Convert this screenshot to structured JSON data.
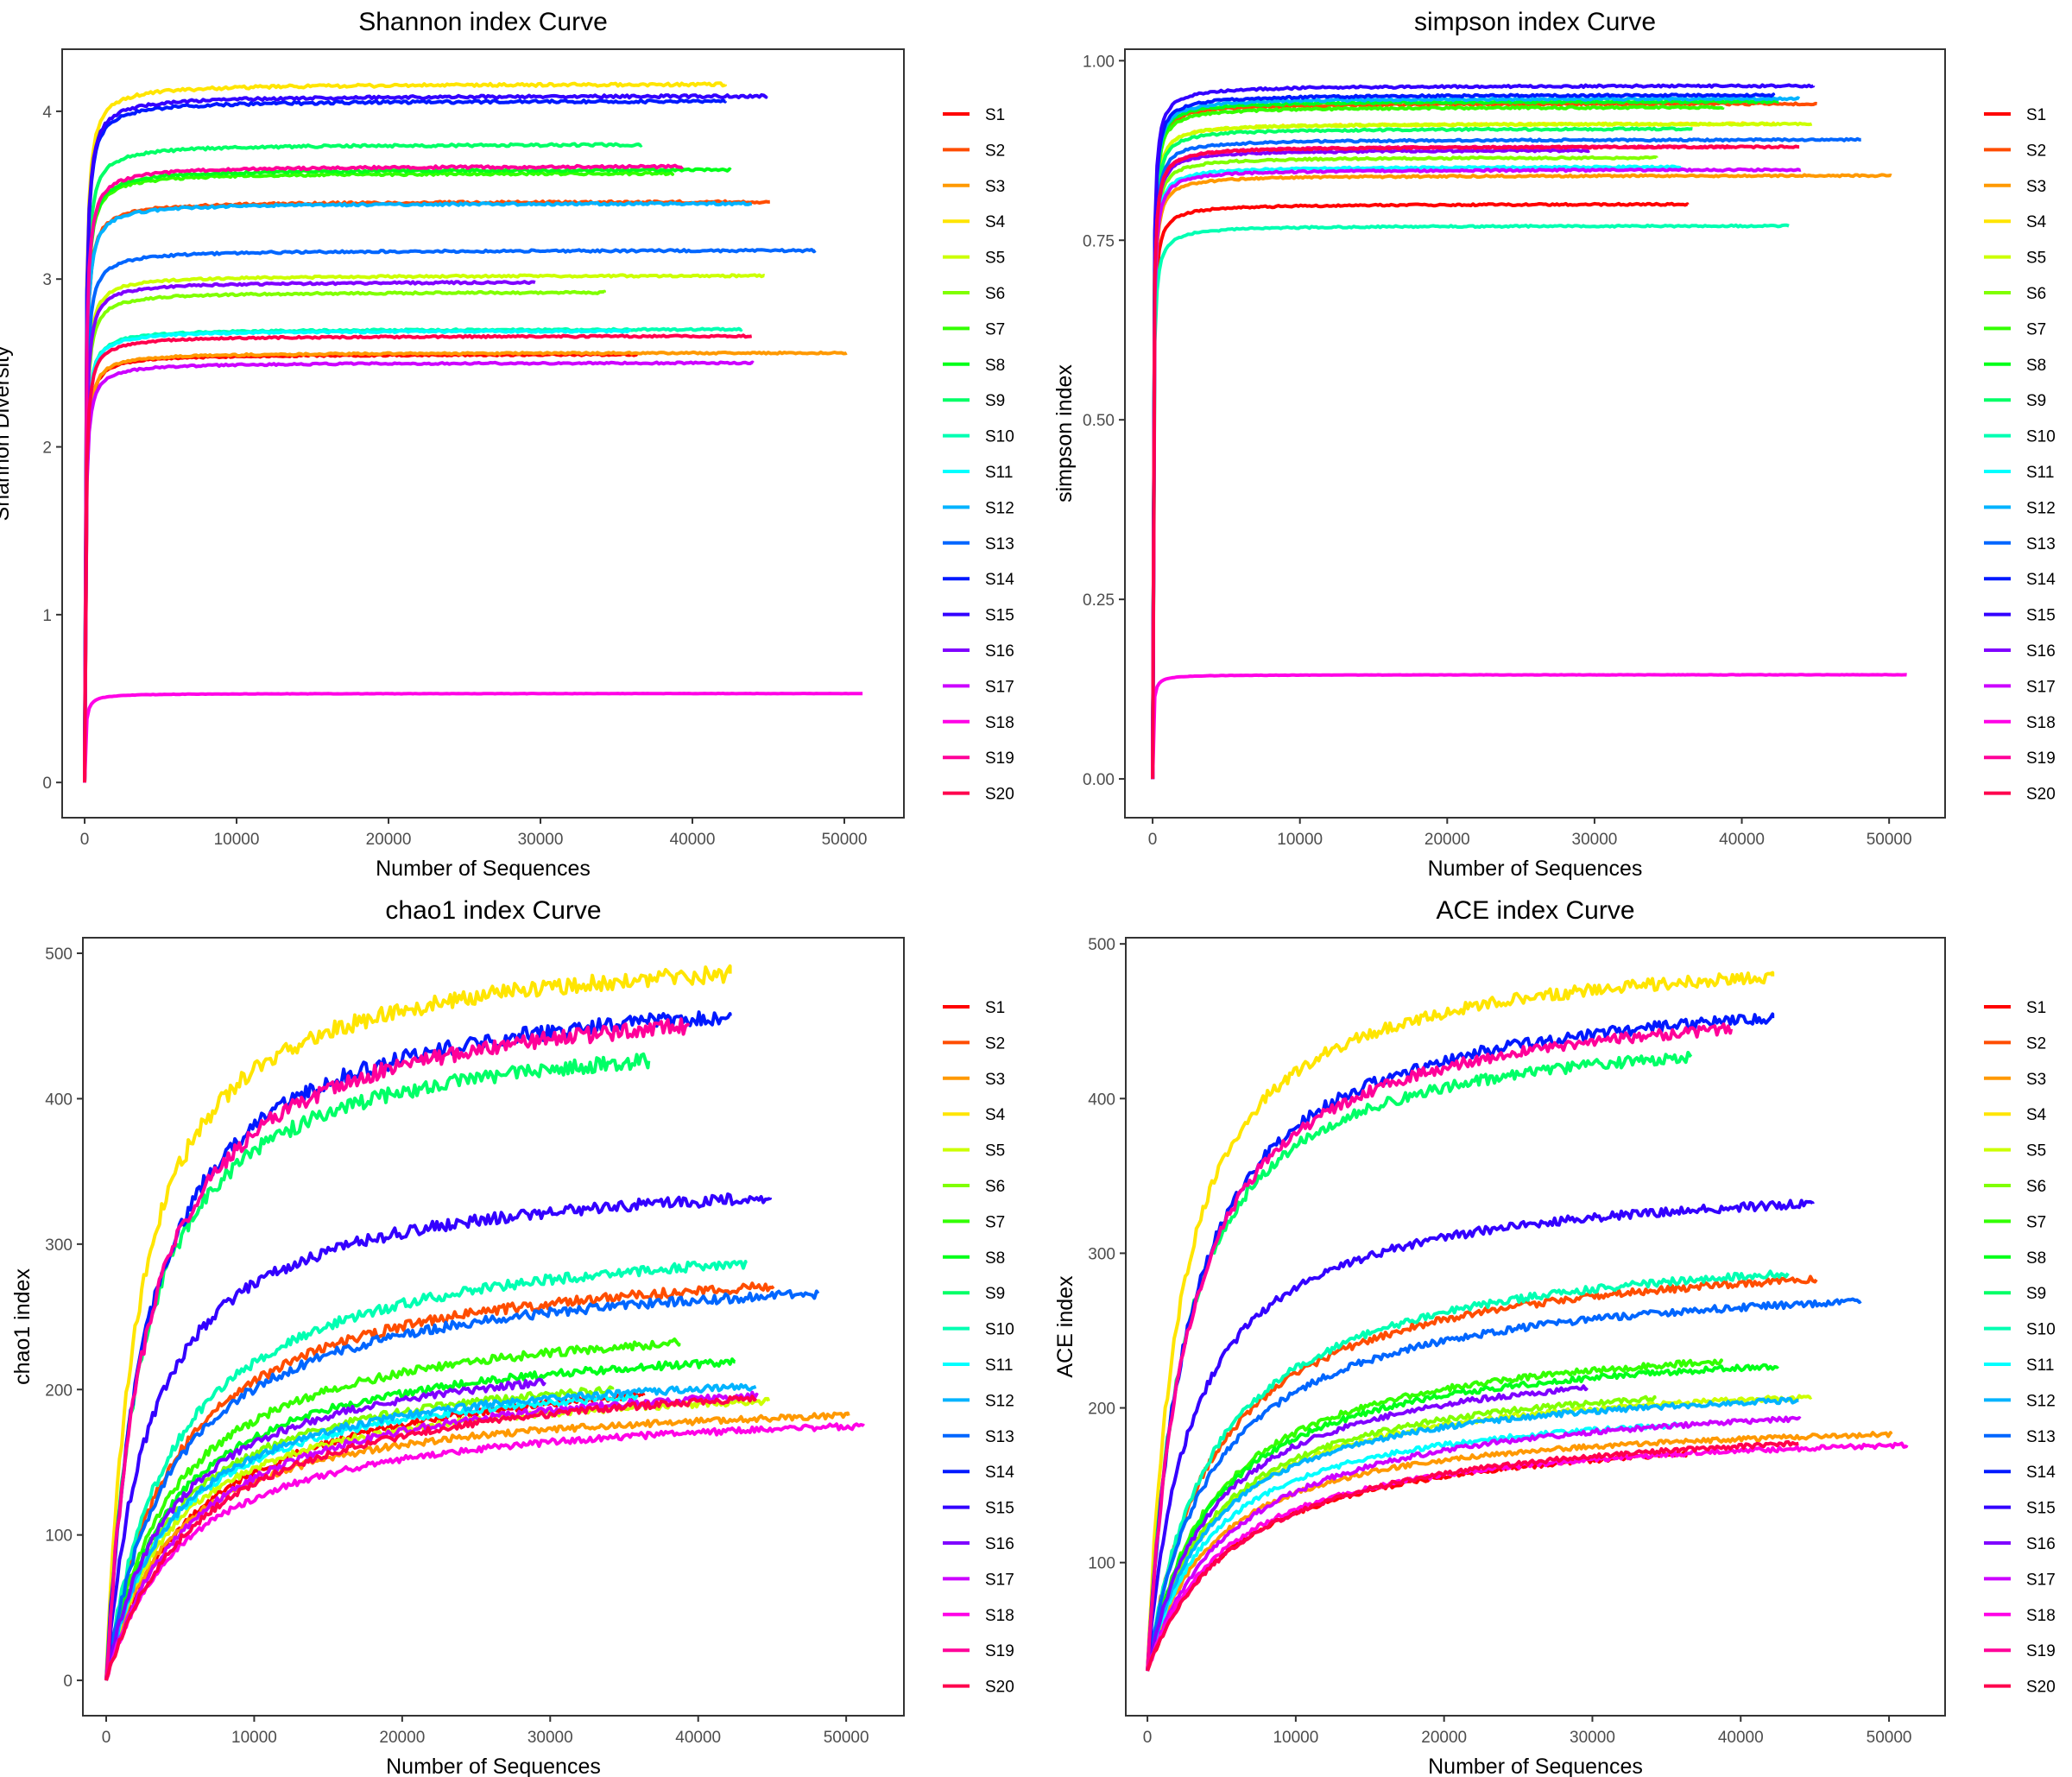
{
  "series_colors": {
    "S1": "#FF0000",
    "S2": "#FF4D00",
    "S3": "#FF9900",
    "S4": "#FFE500",
    "S5": "#CCFF00",
    "S6": "#80FF00",
    "S7": "#33FF00",
    "S8": "#00FF19",
    "S9": "#00FF66",
    "S10": "#00FFB2",
    "S11": "#00FFFF",
    "S12": "#00B3FF",
    "S13": "#0066FF",
    "S14": "#0019FF",
    "S15": "#3300FF",
    "S16": "#7F00FF",
    "S17": "#CC00FF",
    "S18": "#FF00E6",
    "S19": "#FF0099",
    "S20": "#FF004D"
  },
  "chart_data": [
    {
      "type": "line",
      "title": "Shannon index Curve",
      "xlabel": "Number of Sequences",
      "ylabel": "Shannon Diversity",
      "xlim": [
        -1480,
        53920
      ],
      "ylim": [
        -0.21,
        4.37
      ],
      "xticks": [
        "0",
        "10000",
        "20000",
        "30000",
        "40000",
        "50000"
      ],
      "yticks": [
        "0",
        "1",
        "2",
        "3",
        "4"
      ],
      "grid": false,
      "legend": "right",
      "curve_start": 0,
      "half_saturation": 60,
      "noise": 0.002,
      "series": [
        {
          "name": "S1",
          "x_max": 36300,
          "final": 2.55
        },
        {
          "name": "S2",
          "x_max": 45100,
          "final": 3.46
        },
        {
          "name": "S3",
          "x_max": 50150,
          "final": 2.56
        },
        {
          "name": "S4",
          "x_max": 42150,
          "final": 4.16
        },
        {
          "name": "S5",
          "x_max": 44750,
          "final": 3.02
        },
        {
          "name": "S6",
          "x_max": 34200,
          "final": 2.92
        },
        {
          "name": "S7",
          "x_max": 38700,
          "final": 3.63
        },
        {
          "name": "S8",
          "x_max": 42500,
          "final": 3.65
        },
        {
          "name": "S9",
          "x_max": 36650,
          "final": 3.8
        },
        {
          "name": "S10",
          "x_max": 43200,
          "final": 2.7
        },
        {
          "name": "S11",
          "x_max": 35850,
          "final": 2.69
        },
        {
          "name": "S12",
          "x_max": 43900,
          "final": 3.45
        },
        {
          "name": "S13",
          "x_max": 48100,
          "final": 3.17
        },
        {
          "name": "S14",
          "x_max": 42150,
          "final": 4.06
        },
        {
          "name": "S15",
          "x_max": 44850,
          "final": 4.09
        },
        {
          "name": "S16",
          "x_max": 29650,
          "final": 2.98
        },
        {
          "name": "S17",
          "x_max": 44000,
          "final": 2.5
        },
        {
          "name": "S18",
          "x_max": 51200,
          "final": 0.53
        },
        {
          "name": "S19",
          "x_max": 39350,
          "final": 3.67
        },
        {
          "name": "S20",
          "x_max": 43900,
          "final": 2.66
        }
      ]
    },
    {
      "type": "line",
      "title": "simpson index Curve",
      "xlabel": "Number of Sequences",
      "ylabel": "simpson index",
      "xlim": [
        -1880,
        53800
      ],
      "ylim": [
        -0.054,
        1.016
      ],
      "xticks": [
        "0",
        "10000",
        "20000",
        "30000",
        "40000",
        "50000"
      ],
      "yticks": [
        "0.00",
        "0.25",
        "0.50",
        "0.75",
        "1.00"
      ],
      "grid": false,
      "legend": "right",
      "curve_start": 0,
      "half_saturation": 40,
      "noise": 0.0015,
      "series": [
        {
          "name": "S1",
          "x_max": 36300,
          "final": 0.8
        },
        {
          "name": "S2",
          "x_max": 45100,
          "final": 0.94
        },
        {
          "name": "S3",
          "x_max": 50150,
          "final": 0.84
        },
        {
          "name": "S4",
          "x_max": 42150,
          "final": 0.912
        },
        {
          "name": "S5",
          "x_max": 44750,
          "final": 0.912
        },
        {
          "name": "S6",
          "x_max": 34200,
          "final": 0.865
        },
        {
          "name": "S7",
          "x_max": 38700,
          "final": 0.935
        },
        {
          "name": "S8",
          "x_max": 42500,
          "final": 0.943
        },
        {
          "name": "S9",
          "x_max": 36650,
          "final": 0.905
        },
        {
          "name": "S10",
          "x_max": 43200,
          "final": 0.77
        },
        {
          "name": "S11",
          "x_max": 35850,
          "final": 0.852
        },
        {
          "name": "S12",
          "x_max": 43900,
          "final": 0.947
        },
        {
          "name": "S13",
          "x_max": 48100,
          "final": 0.89
        },
        {
          "name": "S14",
          "x_max": 42150,
          "final": 0.952
        },
        {
          "name": "S15",
          "x_max": 44850,
          "final": 0.965
        },
        {
          "name": "S16",
          "x_max": 29650,
          "final": 0.875
        },
        {
          "name": "S17",
          "x_max": 44000,
          "final": 0.848
        },
        {
          "name": "S18",
          "x_max": 51200,
          "final": 0.145
        },
        {
          "name": "S19",
          "x_max": 39350,
          "final": 0.88
        },
        {
          "name": "S20",
          "x_max": 43900,
          "final": 0.88
        }
      ]
    },
    {
      "type": "line",
      "title": "chao1 index Curve",
      "xlabel": "Number of Sequences",
      "ylabel": "chao1 index",
      "xlim": [
        -1575,
        53900
      ],
      "ylim": [
        -24.3,
        510.7
      ],
      "xticks": [
        "0",
        "10000",
        "20000",
        "30000",
        "40000",
        "50000"
      ],
      "yticks": [
        "0",
        "100",
        "200",
        "300",
        "400",
        "500"
      ],
      "grid": false,
      "legend": "right",
      "curve_start": 0,
      "half_saturation": 4500,
      "noise": 0.012,
      "series": [
        {
          "name": "S1",
          "x_max": 36300,
          "final": 196,
          "k": 6000
        },
        {
          "name": "S2",
          "x_max": 45100,
          "final": 271
        },
        {
          "name": "S3",
          "x_max": 50150,
          "final": 182
        },
        {
          "name": "S4",
          "x_max": 42150,
          "final": 486,
          "k": 2200
        },
        {
          "name": "S5",
          "x_max": 44750,
          "final": 192
        },
        {
          "name": "S6",
          "x_max": 34200,
          "final": 200
        },
        {
          "name": "S7",
          "x_max": 38700,
          "final": 232
        },
        {
          "name": "S8",
          "x_max": 42500,
          "final": 219
        },
        {
          "name": "S9",
          "x_max": 36650,
          "final": 426,
          "k": 2500
        },
        {
          "name": "S10",
          "x_max": 43200,
          "final": 287
        },
        {
          "name": "S11",
          "x_max": 35850,
          "final": 195
        },
        {
          "name": "S12",
          "x_max": 43900,
          "final": 202
        },
        {
          "name": "S13",
          "x_max": 48100,
          "final": 266
        },
        {
          "name": "S14",
          "x_max": 42150,
          "final": 457,
          "k": 2800
        },
        {
          "name": "S15",
          "x_max": 44850,
          "final": 332,
          "k": 3000
        },
        {
          "name": "S16",
          "x_max": 29650,
          "final": 205
        },
        {
          "name": "S17",
          "x_max": 44000,
          "final": 196,
          "k": 6000
        },
        {
          "name": "S18",
          "x_max": 51200,
          "final": 175,
          "k": 5500
        },
        {
          "name": "S19",
          "x_max": 39350,
          "final": 450,
          "k": 2800
        },
        {
          "name": "S20",
          "x_max": 43900,
          "final": 194,
          "k": 6500
        }
      ]
    },
    {
      "type": "line",
      "title": "ACE index Curve",
      "xlabel": "Number of Sequences",
      "ylabel": "ACE index",
      "xlim": [
        -1460,
        53780
      ],
      "ylim": [
        1,
        504
      ],
      "xticks": [
        "0",
        "10000",
        "20000",
        "30000",
        "40000",
        "50000"
      ],
      "yticks": [
        "100",
        "200",
        "300",
        "400",
        "500"
      ],
      "grid": false,
      "legend": "right",
      "curve_start": 30,
      "half_saturation": 4500,
      "noise": 0.008,
      "series": [
        {
          "name": "S1",
          "x_max": 36300,
          "final": 170,
          "k": 6000
        },
        {
          "name": "S2",
          "x_max": 45100,
          "final": 283
        },
        {
          "name": "S3",
          "x_max": 50150,
          "final": 183
        },
        {
          "name": "S4",
          "x_max": 42150,
          "final": 479,
          "k": 2200
        },
        {
          "name": "S5",
          "x_max": 44750,
          "final": 207
        },
        {
          "name": "S6",
          "x_max": 34200,
          "final": 206
        },
        {
          "name": "S7",
          "x_max": 38700,
          "final": 230
        },
        {
          "name": "S8",
          "x_max": 42500,
          "final": 227
        },
        {
          "name": "S9",
          "x_max": 36650,
          "final": 427,
          "k": 2500
        },
        {
          "name": "S10",
          "x_max": 43200,
          "final": 287
        },
        {
          "name": "S11",
          "x_max": 35850,
          "final": 189
        },
        {
          "name": "S12",
          "x_max": 43900,
          "final": 205
        },
        {
          "name": "S13",
          "x_max": 48100,
          "final": 269
        },
        {
          "name": "S14",
          "x_max": 42150,
          "final": 452,
          "k": 2800
        },
        {
          "name": "S15",
          "x_max": 44850,
          "final": 332,
          "k": 3000
        },
        {
          "name": "S16",
          "x_max": 29650,
          "final": 213
        },
        {
          "name": "S17",
          "x_max": 44000,
          "final": 193,
          "k": 6000
        },
        {
          "name": "S18",
          "x_max": 51200,
          "final": 176,
          "k": 5500
        },
        {
          "name": "S19",
          "x_max": 39350,
          "final": 445,
          "k": 2800
        },
        {
          "name": "S20",
          "x_max": 43900,
          "final": 177,
          "k": 6500
        }
      ]
    }
  ]
}
